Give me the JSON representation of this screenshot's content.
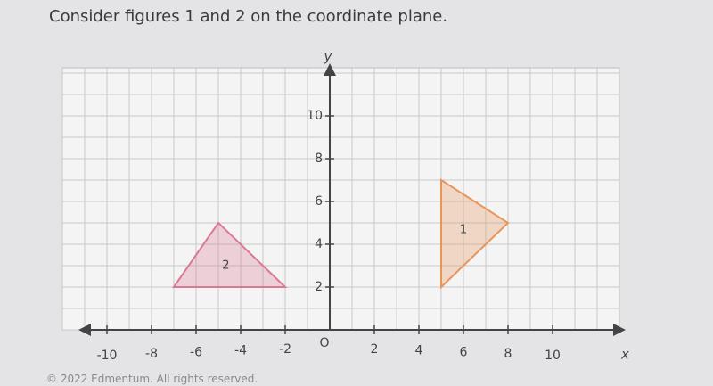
{
  "header": {
    "title": "Consider figures 1 and 2 on the coordinate plane."
  },
  "chart_data": {
    "type": "polygon",
    "x_label": "x",
    "y_label": "y",
    "origin_label": "O",
    "xlim": [
      -12,
      13
    ],
    "ylim": [
      0,
      12
    ],
    "xticks": [
      -10,
      -8,
      -6,
      -4,
      -2,
      2,
      4,
      6,
      8,
      10
    ],
    "yticks": [
      2,
      4,
      6,
      8,
      10
    ],
    "grid": true,
    "figures": [
      {
        "name": "1",
        "color": "#e8955a",
        "x": [
          5,
          8,
          5
        ],
        "y": [
          7,
          5,
          2
        ]
      },
      {
        "name": "2",
        "color": "#d97a95",
        "x": [
          -7,
          -5,
          -2
        ],
        "y": [
          2,
          5,
          2
        ]
      }
    ]
  },
  "footer": {
    "text": "© 2022 Edmentum. All rights reserved."
  }
}
